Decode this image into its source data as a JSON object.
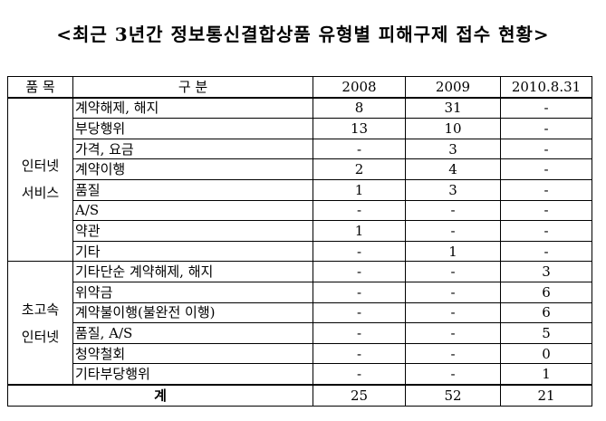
{
  "title": "<최근 3년간 정보통신결합상품 유형별 피해구제 접수 현황>",
  "headers": [
    "품 목",
    "구 분",
    "2008",
    "2009",
    "2010.8.31"
  ],
  "groups": [
    {
      "label_lines": [
        "인터넷",
        "서비스"
      ],
      "rows": [
        {
          "category": "계약해제, 해지",
          "y2008": "8",
          "y2009": "31",
          "y2010": "-"
        },
        {
          "category": "부당행위",
          "y2008": "13",
          "y2009": "10",
          "y2010": "-"
        },
        {
          "category": "가격, 요금",
          "y2008": "-",
          "y2009": "3",
          "y2010": "-"
        },
        {
          "category": "계약이행",
          "y2008": "2",
          "y2009": "4",
          "y2010": "-"
        },
        {
          "category": "품질",
          "y2008": "1",
          "y2009": "3",
          "y2010": "-"
        },
        {
          "category": "A/S",
          "y2008": "-",
          "y2009": "-",
          "y2010": "-"
        },
        {
          "category": "약관",
          "y2008": "1",
          "y2009": "-",
          "y2010": "-"
        },
        {
          "category": "기타",
          "y2008": "-",
          "y2009": "1",
          "y2010": "-"
        }
      ]
    },
    {
      "label_lines": [
        "초고속",
        "인터넷"
      ],
      "rows": [
        {
          "category": "기타단순 계약해제, 해지",
          "y2008": "-",
          "y2009": "-",
          "y2010": "3"
        },
        {
          "category": "위약금",
          "y2008": "-",
          "y2009": "-",
          "y2010": "6"
        },
        {
          "category": "계약불이행(불완전 이행)",
          "y2008": "-",
          "y2009": "-",
          "y2010": "6"
        },
        {
          "category": "품질, A/S",
          "y2008": "-",
          "y2009": "-",
          "y2010": "5"
        },
        {
          "category": "청약철회",
          "y2008": "-",
          "y2009": "-",
          "y2010": "0"
        },
        {
          "category": "기타부당행위",
          "y2008": "-",
          "y2009": "-",
          "y2010": "1"
        }
      ]
    }
  ],
  "total": {
    "label": "계",
    "y2008": "25",
    "y2009": "52",
    "y2010": "21"
  }
}
